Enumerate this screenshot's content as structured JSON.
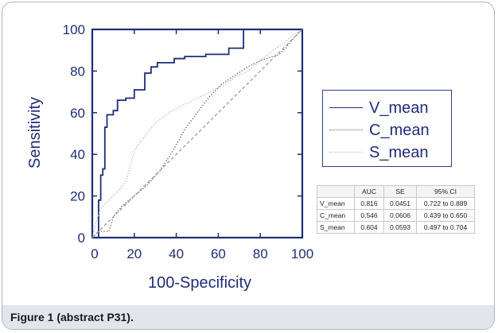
{
  "chart_data": {
    "type": "line",
    "title": "",
    "xlabel": "100-Specificity",
    "ylabel": "Sensitivity",
    "xlim": [
      0,
      100
    ],
    "ylim": [
      0,
      100
    ],
    "xticks": [
      0,
      20,
      40,
      60,
      80,
      100
    ],
    "yticks": [
      0,
      20,
      40,
      60,
      80,
      100
    ],
    "grid": false,
    "legend_position": "right",
    "series": [
      {
        "name": "V_mean",
        "color": "#1f2d7a",
        "style": "solid",
        "x": [
          0,
          3,
          3,
          4,
          4,
          5,
          5,
          6,
          6,
          7,
          7,
          10,
          10,
          12,
          12,
          16,
          16,
          20,
          20,
          25,
          25,
          28,
          28,
          31,
          31,
          39,
          39,
          44,
          44,
          54,
          54,
          65,
          65,
          72,
          72,
          100
        ],
        "y": [
          0,
          0,
          18,
          18,
          30,
          30,
          33,
          33,
          53,
          53,
          59,
          59,
          61,
          61,
          66,
          66,
          67,
          67,
          71,
          71,
          79,
          79,
          82,
          82,
          84,
          84,
          86,
          86,
          87,
          87,
          88,
          88,
          91,
          91,
          100,
          100
        ]
      },
      {
        "name": "C_mean",
        "color": "#8a6a4e",
        "style": "dotted",
        "x": [
          0,
          3,
          8,
          10,
          14,
          20,
          26,
          32,
          38,
          44,
          50,
          56,
          62,
          68,
          74,
          80,
          86,
          89,
          92,
          96,
          100
        ],
        "y": [
          0,
          3,
          3,
          10,
          15,
          20,
          25,
          32,
          41,
          52,
          60,
          68,
          74,
          78,
          82,
          85,
          87,
          88,
          91,
          96,
          100
        ]
      },
      {
        "name": "S_mean",
        "color": "#b9bdd2",
        "style": "dotted",
        "x": [
          0,
          2,
          4,
          8,
          12,
          16,
          18,
          20,
          23,
          26,
          30,
          34,
          38,
          44,
          50,
          56,
          62,
          68,
          74,
          80,
          86,
          91,
          95,
          100
        ],
        "y": [
          0,
          8,
          14,
          18,
          22,
          27,
          34,
          42,
          46,
          50,
          55,
          58,
          61,
          64,
          67,
          70,
          73,
          77,
          80,
          85,
          90,
          93,
          97,
          100
        ]
      },
      {
        "name": "",
        "color": "#9a9a9a",
        "style": "dashed",
        "x": [
          0,
          100
        ],
        "y": [
          0,
          100
        ]
      }
    ],
    "auc_table": {
      "headers": [
        "",
        "AUC",
        "SE",
        "95% CI"
      ],
      "rows": [
        [
          "V_mean",
          "0.816",
          "0.0451",
          "0.722 to 0.889"
        ],
        [
          "C_mean",
          "0.546",
          "0.0606",
          "0.439 to 0.650"
        ],
        [
          "S_mean",
          "0.604",
          "0.0593",
          "0.497 to 0.704"
        ]
      ]
    }
  },
  "caption": "Figure 1 (abstract P31)."
}
